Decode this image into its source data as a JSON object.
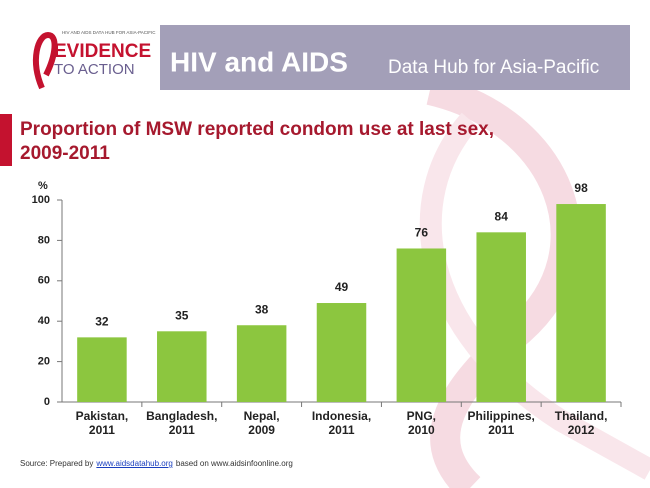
{
  "header": {
    "logo_small": "HIV AND AIDS DATA HUB FOR ASIA-PACIFIC",
    "logo_line1": "EVIDENCE",
    "logo_line2": "TO ACTION",
    "title": "HIV and AIDS",
    "subtitle": "Data Hub for Asia-Pacific"
  },
  "source": [
    "Source: Prepared by",
    "www.aidsdatahub.org",
    "based on www.aidsinfoonline.org"
  ],
  "chart_data": {
    "type": "bar",
    "title": [
      "Proportion of MSW reported condom use at last sex,",
      "2009-2011"
    ],
    "y_label": "%",
    "categories": [
      [
        "Pakistan,",
        "2011"
      ],
      [
        "Bangladesh,",
        "2011"
      ],
      [
        "Nepal,",
        "2009"
      ],
      [
        "Indonesia,",
        "2011"
      ],
      [
        "PNG,",
        "2010"
      ],
      [
        "Philippines,",
        "2011"
      ],
      [
        "Thailand,",
        "2012"
      ]
    ],
    "values": [
      32,
      35,
      38,
      49,
      76,
      84,
      98
    ],
    "color": "#8cc63f",
    "ylim": [
      0,
      100
    ],
    "yticks": [
      0,
      20,
      40,
      60,
      80,
      100
    ],
    "grid": false
  }
}
